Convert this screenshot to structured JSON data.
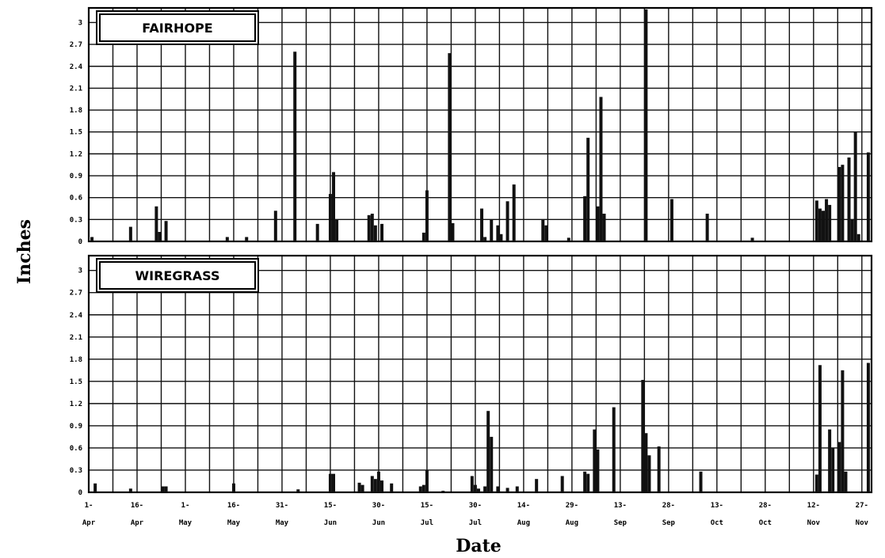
{
  "chart_data": {
    "type": "bar",
    "xlabel": "Date",
    "ylabel": "Inches",
    "ylim": [
      0,
      3.2
    ],
    "y_ticks": [
      "0",
      "0.3",
      "0.6",
      "0.9",
      "1.2",
      "1.5",
      "1.8",
      "2.1",
      "2.4",
      "2.7",
      "3"
    ],
    "y_tick_values": [
      0,
      0.3,
      0.6,
      0.9,
      1.2,
      1.5,
      1.8,
      2.1,
      2.4,
      2.7,
      3.0
    ],
    "x_tick_labels": [
      [
        "1-",
        "Apr"
      ],
      [
        "16-",
        "Apr"
      ],
      [
        "1-",
        "May"
      ],
      [
        "16-",
        "May"
      ],
      [
        "31-",
        "May"
      ],
      [
        "15-",
        "Jun"
      ],
      [
        "30-",
        "Jun"
      ],
      [
        "15-",
        "Jul"
      ],
      [
        "30-",
        "Jul"
      ],
      [
        "14-",
        "Aug"
      ],
      [
        "29-",
        "Aug"
      ],
      [
        "13-",
        "Sep"
      ],
      [
        "28-",
        "Sep"
      ],
      [
        "13-",
        "Oct"
      ],
      [
        "28-",
        "Oct"
      ],
      [
        "12-",
        "Nov"
      ],
      [
        "27-",
        "Nov"
      ]
    ],
    "x_range": [
      "1-Apr",
      "30-Nov"
    ],
    "grid": true,
    "panels": [
      {
        "name": "FAIRHOPE",
        "bars": [
          {
            "x": "2-Apr",
            "y": 0.06
          },
          {
            "x": "14-Apr",
            "y": 0.2
          },
          {
            "x": "22-Apr",
            "y": 0.48
          },
          {
            "x": "23-Apr",
            "y": 0.13
          },
          {
            "x": "25-Apr",
            "y": 0.28
          },
          {
            "x": "14-May",
            "y": 0.06
          },
          {
            "x": "20-May",
            "y": 0.06
          },
          {
            "x": "29-May",
            "y": 0.42
          },
          {
            "x": "4-Jun",
            "y": 2.6
          },
          {
            "x": "11-Jun",
            "y": 0.24
          },
          {
            "x": "15-Jun",
            "y": 0.65
          },
          {
            "x": "16-Jun",
            "y": 0.95
          },
          {
            "x": "17-Jun",
            "y": 0.3
          },
          {
            "x": "27-Jun",
            "y": 0.36
          },
          {
            "x": "28-Jun",
            "y": 0.38
          },
          {
            "x": "29-Jun",
            "y": 0.22
          },
          {
            "x": "1-Jul",
            "y": 0.24
          },
          {
            "x": "14-Jul",
            "y": 0.12
          },
          {
            "x": "15-Jul",
            "y": 0.7
          },
          {
            "x": "22-Jul",
            "y": 2.58
          },
          {
            "x": "23-Jul",
            "y": 0.25
          },
          {
            "x": "1-Aug",
            "y": 0.45
          },
          {
            "x": "2-Aug",
            "y": 0.06
          },
          {
            "x": "4-Aug",
            "y": 0.3
          },
          {
            "x": "6-Aug",
            "y": 0.22
          },
          {
            "x": "7-Aug",
            "y": 0.1
          },
          {
            "x": "9-Aug",
            "y": 0.55
          },
          {
            "x": "11-Aug",
            "y": 0.78
          },
          {
            "x": "20-Aug",
            "y": 0.3
          },
          {
            "x": "21-Aug",
            "y": 0.22
          },
          {
            "x": "28-Aug",
            "y": 0.05
          },
          {
            "x": "2-Sep",
            "y": 0.62
          },
          {
            "x": "3-Sep",
            "y": 1.42
          },
          {
            "x": "6-Sep",
            "y": 0.48
          },
          {
            "x": "7-Sep",
            "y": 1.98
          },
          {
            "x": "8-Sep",
            "y": 0.38
          },
          {
            "x": "21-Sep",
            "y": 3.18
          },
          {
            "x": "29-Sep",
            "y": 0.58
          },
          {
            "x": "10-Oct",
            "y": 0.38
          },
          {
            "x": "24-Oct",
            "y": 0.05
          },
          {
            "x": "13-Nov",
            "y": 0.56
          },
          {
            "x": "14-Nov",
            "y": 0.45
          },
          {
            "x": "15-Nov",
            "y": 0.42
          },
          {
            "x": "16-Nov",
            "y": 0.58
          },
          {
            "x": "17-Nov",
            "y": 0.5
          },
          {
            "x": "20-Nov",
            "y": 1.02
          },
          {
            "x": "21-Nov",
            "y": 1.05
          },
          {
            "x": "23-Nov",
            "y": 1.15
          },
          {
            "x": "24-Nov",
            "y": 0.3
          },
          {
            "x": "25-Nov",
            "y": 1.5
          },
          {
            "x": "26-Nov",
            "y": 0.1
          },
          {
            "x": "29-Nov",
            "y": 1.22
          }
        ]
      },
      {
        "name": "WIREGRASS",
        "bars": [
          {
            "x": "3-Apr",
            "y": 0.12
          },
          {
            "x": "14-Apr",
            "y": 0.05
          },
          {
            "x": "24-Apr",
            "y": 0.08
          },
          {
            "x": "25-Apr",
            "y": 0.08
          },
          {
            "x": "16-May",
            "y": 0.12
          },
          {
            "x": "5-Jun",
            "y": 0.04
          },
          {
            "x": "15-Jun",
            "y": 0.25
          },
          {
            "x": "16-Jun",
            "y": 0.25
          },
          {
            "x": "24-Jun",
            "y": 0.13
          },
          {
            "x": "25-Jun",
            "y": 0.1
          },
          {
            "x": "28-Jun",
            "y": 0.22
          },
          {
            "x": "29-Jun",
            "y": 0.18
          },
          {
            "x": "30-Jun",
            "y": 0.28
          },
          {
            "x": "1-Jul",
            "y": 0.16
          },
          {
            "x": "4-Jul",
            "y": 0.12
          },
          {
            "x": "13-Jul",
            "y": 0.08
          },
          {
            "x": "14-Jul",
            "y": 0.1
          },
          {
            "x": "15-Jul",
            "y": 0.3
          },
          {
            "x": "20-Jul",
            "y": 0.02
          },
          {
            "x": "29-Jul",
            "y": 0.22
          },
          {
            "x": "30-Jul",
            "y": 0.1
          },
          {
            "x": "31-Jul",
            "y": 0.05
          },
          {
            "x": "2-Aug",
            "y": 0.08
          },
          {
            "x": "3-Aug",
            "y": 1.1
          },
          {
            "x": "4-Aug",
            "y": 0.75
          },
          {
            "x": "6-Aug",
            "y": 0.08
          },
          {
            "x": "9-Aug",
            "y": 0.06
          },
          {
            "x": "12-Aug",
            "y": 0.08
          },
          {
            "x": "18-Aug",
            "y": 0.18
          },
          {
            "x": "26-Aug",
            "y": 0.22
          },
          {
            "x": "2-Sep",
            "y": 0.28
          },
          {
            "x": "3-Sep",
            "y": 0.25
          },
          {
            "x": "5-Sep",
            "y": 0.85
          },
          {
            "x": "6-Sep",
            "y": 0.58
          },
          {
            "x": "11-Sep",
            "y": 1.15
          },
          {
            "x": "20-Sep",
            "y": 1.52
          },
          {
            "x": "21-Sep",
            "y": 0.8
          },
          {
            "x": "22-Sep",
            "y": 0.5
          },
          {
            "x": "25-Sep",
            "y": 0.62
          },
          {
            "x": "8-Oct",
            "y": 0.28
          },
          {
            "x": "13-Nov",
            "y": 0.24
          },
          {
            "x": "14-Nov",
            "y": 1.72
          },
          {
            "x": "17-Nov",
            "y": 0.85
          },
          {
            "x": "18-Nov",
            "y": 0.6
          },
          {
            "x": "20-Nov",
            "y": 0.68
          },
          {
            "x": "21-Nov",
            "y": 1.65
          },
          {
            "x": "22-Nov",
            "y": 0.28
          },
          {
            "x": "29-Nov",
            "y": 1.75
          }
        ]
      }
    ]
  }
}
